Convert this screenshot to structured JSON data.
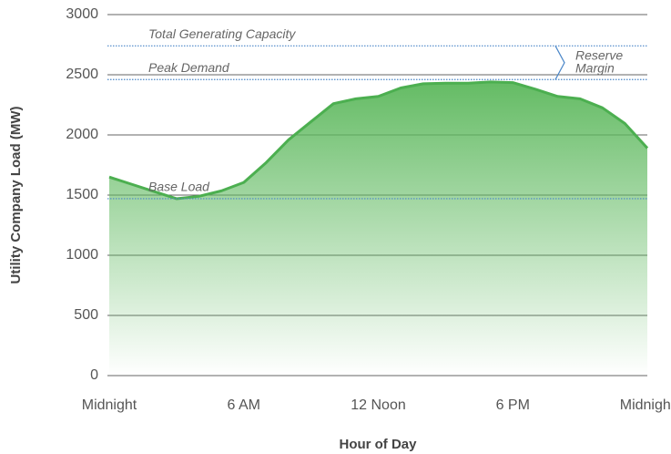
{
  "chart_data": {
    "type": "area",
    "x": [
      0,
      1,
      2,
      3,
      4,
      5,
      6,
      7,
      8,
      9,
      10,
      11,
      12,
      13,
      14,
      15,
      16,
      17,
      18,
      19,
      20,
      21,
      22,
      23,
      24
    ],
    "series": [
      {
        "name": "Utility Company Load",
        "color": "#4caf50",
        "values": [
          1650,
          1590,
          1530,
          1470,
          1490,
          1535,
          1605,
          1770,
          1960,
          2110,
          2260,
          2300,
          2320,
          2390,
          2425,
          2430,
          2430,
          2440,
          2435,
          2380,
          2320,
          2300,
          2225,
          2095,
          1890
        ]
      }
    ],
    "xlim": [
      0,
      24
    ],
    "xticks": [
      {
        "value": 0,
        "label": "Midnight"
      },
      {
        "value": 6,
        "label": "6 AM"
      },
      {
        "value": 12,
        "label": "12 Noon"
      },
      {
        "value": 18,
        "label": "6 PM"
      },
      {
        "value": 24,
        "label": "Midnight"
      }
    ],
    "ylim": [
      0,
      3000
    ],
    "yticks": [
      0,
      500,
      1000,
      1500,
      2000,
      2500,
      3000
    ],
    "grid": true,
    "x_label": "Hour of Day",
    "y_label": "Utility Company Load (MW)",
    "reference_lines": [
      {
        "label": "Total Generating Capacity",
        "value": 2740
      },
      {
        "label": "Peak Demand",
        "value": 2460
      },
      {
        "label": "Base Load",
        "value": 1470
      }
    ],
    "annotation": [
      "Reserve",
      "Margin"
    ]
  }
}
